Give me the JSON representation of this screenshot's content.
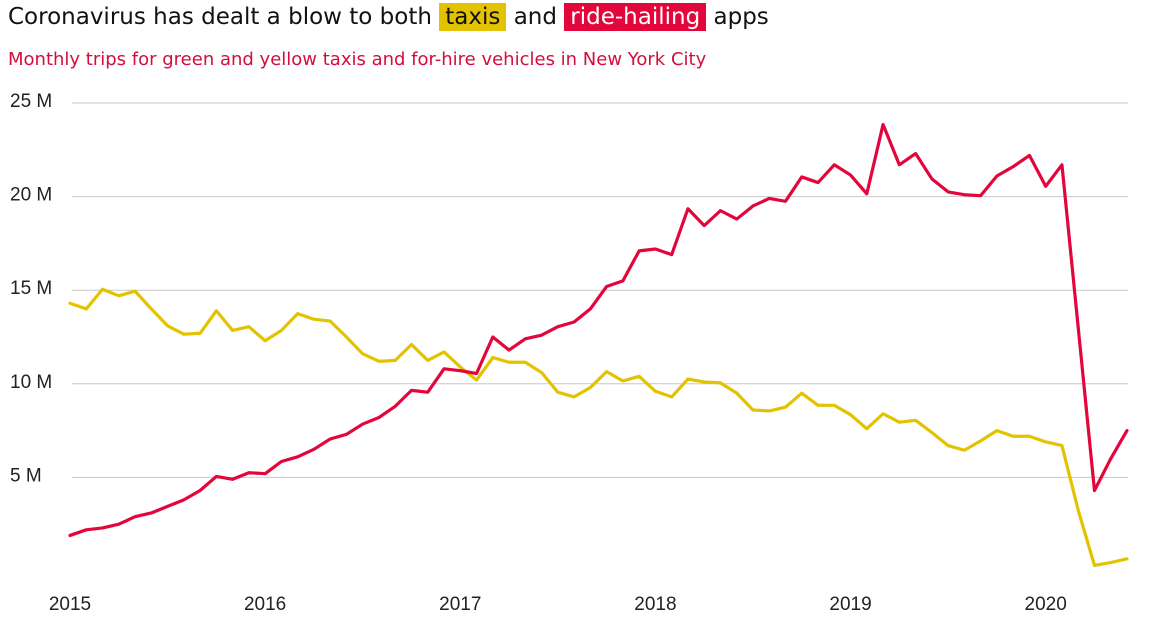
{
  "chart_data": {
    "type": "line",
    "title": [
      "Coronavirus has dealt a blow to both",
      "and",
      "apps"
    ],
    "subtitle": "Monthly trips for green and yellow taxis and for-hire vehicles in New York City",
    "x": [
      2015,
      2015.0833,
      2015.1667,
      2015.25,
      2015.3333,
      2015.4167,
      2015.5,
      2015.5833,
      2015.6667,
      2015.75,
      2015.8333,
      2015.9167,
      2016,
      2016.0833,
      2016.1667,
      2016.25,
      2016.3333,
      2016.4167,
      2016.5,
      2016.5833,
      2016.6667,
      2016.75,
      2016.8333,
      2016.9167,
      2017,
      2017.0833,
      2017.1667,
      2017.25,
      2017.3333,
      2017.4167,
      2017.5,
      2017.5833,
      2017.6667,
      2017.75,
      2017.8333,
      2017.9167,
      2018,
      2018.0833,
      2018.1667,
      2018.25,
      2018.3333,
      2018.4167,
      2018.5,
      2018.5833,
      2018.6667,
      2018.75,
      2018.8333,
      2018.9167,
      2019,
      2019.0833,
      2019.1667,
      2019.25,
      2019.3333,
      2019.4167,
      2019.5,
      2019.5833,
      2019.6667,
      2019.75,
      2019.8333,
      2019.9167,
      2020,
      2020.0833,
      2020.1667,
      2020.25,
      2020.3333,
      2020.4167
    ],
    "series": [
      {
        "name": "taxis",
        "color": "#e3c300",
        "values": [
          14.3,
          14.0,
          15.05,
          14.7,
          14.95,
          14.0,
          13.1,
          12.65,
          12.7,
          13.9,
          12.85,
          13.05,
          12.3,
          12.85,
          13.75,
          13.45,
          13.35,
          12.5,
          11.6,
          11.2,
          11.25,
          12.1,
          11.25,
          11.7,
          10.9,
          10.2,
          11.4,
          11.15,
          11.15,
          10.6,
          9.55,
          9.3,
          9.8,
          10.65,
          10.15,
          10.4,
          9.6,
          9.3,
          10.25,
          10.1,
          10.05,
          9.5,
          8.6,
          8.55,
          8.75,
          9.5,
          8.85,
          8.85,
          8.35,
          7.6,
          8.4,
          7.95,
          8.05,
          7.4,
          6.7,
          6.45,
          6.95,
          7.5,
          7.2,
          7.2,
          6.9,
          6.7,
          3.25,
          0.3,
          0.45,
          0.65
        ]
      },
      {
        "name": "ride-hailing",
        "color": "#e2063b",
        "values": [
          1.9,
          2.2,
          2.3,
          2.5,
          2.9,
          3.1,
          3.45,
          3.8,
          4.3,
          5.05,
          4.9,
          5.25,
          5.2,
          5.85,
          6.1,
          6.5,
          7.05,
          7.3,
          7.85,
          8.2,
          8.8,
          9.65,
          9.55,
          10.8,
          10.7,
          10.55,
          12.5,
          11.8,
          12.4,
          12.6,
          13.05,
          13.3,
          14.0,
          15.2,
          15.5,
          17.1,
          17.2,
          16.9,
          19.35,
          18.45,
          19.25,
          18.8,
          19.5,
          19.9,
          19.75,
          21.05,
          20.75,
          21.7,
          21.15,
          20.15,
          23.85,
          21.7,
          22.3,
          20.95,
          20.25,
          20.1,
          20.05,
          21.1,
          21.6,
          22.2,
          20.55,
          21.7,
          13.0,
          4.3,
          6.0,
          7.5
        ]
      }
    ],
    "xlim": [
      2015,
      2020.4167
    ],
    "xticks": [
      2015,
      2016,
      2017,
      2018,
      2019,
      2020
    ],
    "ylim": [
      0,
      25
    ],
    "yticks": [
      {
        "value": 5,
        "label": "5 M"
      },
      {
        "value": 10,
        "label": "10 M"
      },
      {
        "value": 15,
        "label": "15 M"
      },
      {
        "value": 20,
        "label": "20 M"
      },
      {
        "value": 25,
        "label": "25 M"
      }
    ],
    "grid": true
  }
}
